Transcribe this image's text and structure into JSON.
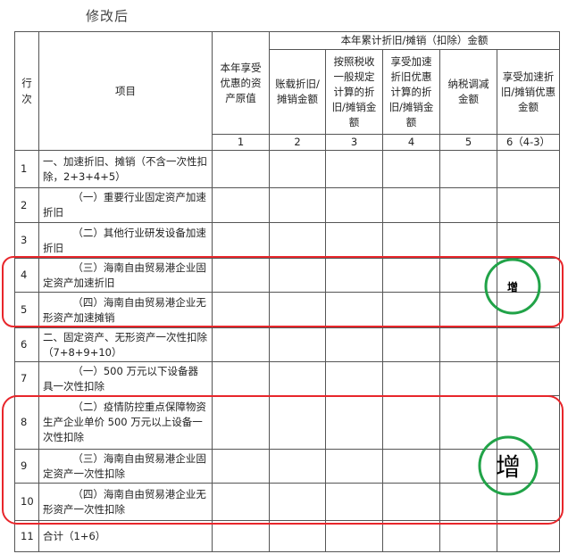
{
  "title": "修改后",
  "table": {
    "line_header": "行次",
    "item_header": "项目",
    "original_value_header": "本年享受优惠的资产原值",
    "group_header": "本年累计折旧/摊销（扣除）金额",
    "group_columns": [
      "账载折旧/摊销金额",
      "按照税收一般规定计算的折旧/摊销金额",
      "享受加速折旧优惠计算的折旧/摊销金额",
      "纳税调减金额",
      "享受加速折旧/摊销优惠金额"
    ],
    "column_numbers": [
      "1",
      "2",
      "3",
      "4",
      "5",
      "6（4-3）"
    ],
    "rows": [
      {
        "line": "1",
        "item": "一、加速折旧、摊销（不含一次性扣除，2+3+4+5）",
        "indent": false
      },
      {
        "line": "2",
        "item": "（一）重要行业固定资产加速折旧",
        "indent": true
      },
      {
        "line": "3",
        "item": "（二）其他行业研发设备加速折旧",
        "indent": true
      },
      {
        "line": "4",
        "item": "（三）海南自由贸易港企业固定资产加速折旧",
        "indent": true
      },
      {
        "line": "5",
        "item": "（四）海南自由贸易港企业无形资产加速摊销",
        "indent": true
      },
      {
        "line": "6",
        "item": "二、固定资产、无形资产一次性扣除（7+8+9+10）",
        "indent": false
      },
      {
        "line": "7",
        "item": "（一）500 万元以下设备器具一次性扣除",
        "indent": true
      },
      {
        "line": "8",
        "item": "（二）疫情防控重点保障物资生产企业单价 500 万元以上设备一次性扣除",
        "indent": true
      },
      {
        "line": "9",
        "item": "（三）海南自由贸易港企业固定资产一次性扣除",
        "indent": true
      },
      {
        "line": "10",
        "item": "（四）海南自由贸易港企业无形资产一次性扣除",
        "indent": true
      },
      {
        "line": "11",
        "item": "合计（1+6）",
        "indent": false
      }
    ]
  },
  "annotations": [
    {
      "label": "增"
    },
    {
      "label": "增"
    }
  ]
}
